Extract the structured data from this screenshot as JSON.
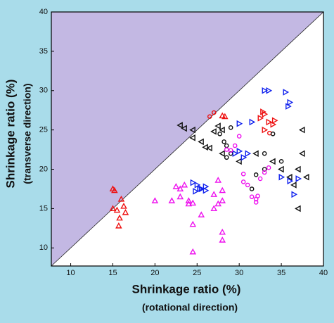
{
  "chart_data": {
    "type": "scatter",
    "x_label": "Shrinkage ratio (%)",
    "x_sublabel": "(rotational direction)",
    "y_label": "Shrinkage ratio (%)",
    "y_sublabel": "(transverse direction)",
    "xlim": [
      7.7,
      40
    ],
    "ylim": [
      7.7,
      40
    ],
    "xticks": [
      10,
      15,
      20,
      25,
      30,
      35,
      40
    ],
    "yticks": [
      10,
      15,
      20,
      25,
      30,
      35,
      40
    ],
    "diagonal_fill": "#c3b8e3",
    "series": [
      {
        "color": "#ee1111",
        "marker": "triangle-up",
        "x": [
          15,
          15.2,
          16,
          15,
          15.5,
          16.3,
          16.5,
          15.8,
          15.7,
          28,
          28.3
        ],
        "values": [
          17.5,
          17.3,
          16.2,
          15,
          14.8,
          15.3,
          14.5,
          13.8,
          12.8,
          26.8,
          26.7
        ]
      },
      {
        "color": "#ee1111",
        "marker": "triangle-right",
        "x": [
          33,
          32.5,
          33.5,
          33,
          34,
          32.8,
          34.2
        ],
        "values": [
          27,
          26.5,
          26,
          25,
          25.7,
          27.3,
          26.2
        ]
      },
      {
        "color": "#ee1111",
        "marker": "circle",
        "x": [
          26.5,
          27,
          33.6
        ],
        "values": [
          26.7,
          27.2,
          24.6
        ]
      },
      {
        "color": "#111111",
        "marker": "triangle-left",
        "x": [
          23,
          23.5,
          24.5,
          24.5,
          25.5,
          26,
          26.5,
          27,
          27.5,
          28,
          28,
          30,
          32,
          34,
          35,
          36,
          37,
          37.5,
          37.5,
          37,
          36.5,
          38
        ],
        "values": [
          25.6,
          25.2,
          25,
          24,
          23.5,
          22.8,
          22.7,
          24.8,
          25.5,
          25,
          22,
          21,
          22,
          21,
          20,
          19,
          20,
          22,
          25,
          15,
          18,
          19
        ]
      },
      {
        "color": "#111111",
        "marker": "circle",
        "x": [
          27.7,
          28.2,
          28.5,
          29,
          29,
          28.5,
          33,
          32,
          34,
          31.5,
          33,
          35
        ],
        "values": [
          24.5,
          23.5,
          23,
          25.3,
          22,
          21.5,
          20,
          19.3,
          24.5,
          17.5,
          22,
          21
        ]
      },
      {
        "color": "#1122ee",
        "marker": "triangle-right",
        "x": [
          33,
          33.5,
          35.5,
          36,
          35.8,
          31.5,
          30,
          31,
          30,
          29.5,
          30.5,
          35,
          36,
          37,
          36.5,
          24.5,
          25,
          25.5,
          26,
          24.8,
          25.3,
          26
        ],
        "values": [
          30,
          30,
          29.8,
          28.5,
          28,
          26,
          25.8,
          22,
          22.3,
          22,
          21.5,
          19,
          18.5,
          18.8,
          16.8,
          18.3,
          18,
          17.5,
          17.8,
          17.2,
          17.5,
          17.3
        ]
      },
      {
        "color": "#ee11ee",
        "marker": "triangle-up",
        "x": [
          22.5,
          23,
          22,
          23,
          24,
          24.5,
          23.5,
          24,
          24.5,
          25.5,
          24.5,
          27.5,
          28,
          27,
          28,
          27.5,
          27,
          28,
          28,
          20
        ],
        "values": [
          17.8,
          17.5,
          16,
          16.5,
          16,
          15.7,
          18,
          15.6,
          13,
          14.2,
          9.5,
          18.6,
          17.3,
          16.8,
          16,
          15.6,
          15,
          12,
          11,
          16
        ]
      },
      {
        "color": "#ee11ee",
        "marker": "circle",
        "x": [
          29,
          29.5,
          30,
          30.5,
          30.5,
          31,
          31.5,
          32,
          32.5,
          32,
          33,
          33.5,
          28.5,
          32.2
        ],
        "values": [
          22.4,
          23,
          24.2,
          19.4,
          18.4,
          18,
          16.5,
          16.2,
          18.8,
          15.8,
          19.6,
          20.2,
          22.5,
          16.6
        ]
      }
    ]
  }
}
